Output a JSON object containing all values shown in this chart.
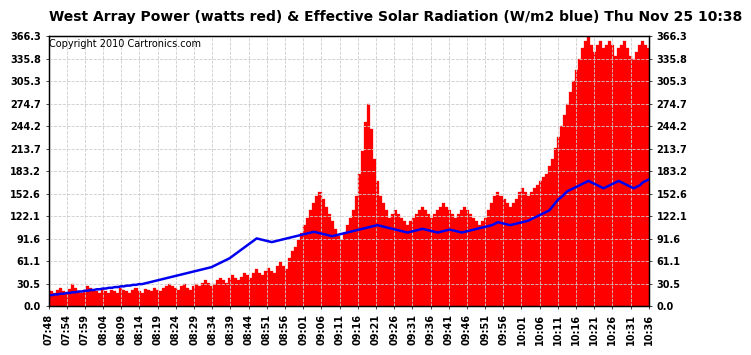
{
  "title": "West Array Power (watts red) & Effective Solar Radiation (W/m2 blue) Thu Nov 25 10:38",
  "copyright": "Copyright 2010 Cartronics.com",
  "yticks": [
    0.0,
    30.5,
    61.1,
    91.6,
    122.1,
    152.6,
    183.2,
    213.7,
    244.2,
    274.7,
    305.3,
    335.8,
    366.3
  ],
  "ymax": 366.3,
  "ymin": 0.0,
  "xtick_labels": [
    "07:48",
    "07:54",
    "07:59",
    "08:04",
    "08:09",
    "08:14",
    "08:19",
    "08:24",
    "08:29",
    "08:34",
    "08:39",
    "08:44",
    "08:51",
    "08:56",
    "09:01",
    "09:06",
    "09:11",
    "09:16",
    "09:21",
    "09:26",
    "09:31",
    "09:36",
    "09:41",
    "09:46",
    "09:51",
    "09:56",
    "10:01",
    "10:06",
    "10:11",
    "10:16",
    "10:21",
    "10:26",
    "10:31",
    "10:36"
  ],
  "bar_color": "#FF0000",
  "line_color": "#0000EE",
  "bg_color": "#FFFFFF",
  "grid_color": "#CCCCCC",
  "title_fontsize": 10,
  "tick_fontsize": 7,
  "copyright_fontsize": 7,
  "power_data": [
    22,
    20,
    18,
    22,
    25,
    20,
    18,
    23,
    30,
    25,
    20,
    18,
    22,
    28,
    25,
    22,
    20,
    18,
    24,
    20,
    18,
    22,
    20,
    18,
    25,
    22,
    20,
    18,
    22,
    25,
    20,
    18,
    23,
    22,
    20,
    25,
    22,
    20,
    25,
    28,
    30,
    28,
    25,
    22,
    28,
    30,
    25,
    22,
    28,
    30,
    28,
    32,
    35,
    32,
    28,
    30,
    35,
    38,
    35,
    32,
    38,
    42,
    38,
    35,
    40,
    45,
    42,
    38,
    45,
    50,
    45,
    42,
    48,
    52,
    48,
    45,
    55,
    60,
    55,
    50,
    65,
    75,
    80,
    90,
    100,
    110,
    120,
    130,
    140,
    150,
    155,
    145,
    135,
    125,
    115,
    105,
    95,
    90,
    100,
    110,
    120,
    130,
    150,
    180,
    210,
    250,
    275,
    240,
    200,
    170,
    150,
    140,
    130,
    120,
    125,
    130,
    125,
    120,
    115,
    110,
    115,
    120,
    125,
    130,
    135,
    130,
    125,
    120,
    125,
    130,
    135,
    140,
    135,
    130,
    125,
    120,
    125,
    130,
    135,
    130,
    125,
    120,
    115,
    110,
    115,
    120,
    130,
    140,
    150,
    155,
    150,
    145,
    140,
    135,
    140,
    145,
    155,
    160,
    155,
    150,
    155,
    160,
    165,
    170,
    175,
    180,
    190,
    200,
    215,
    230,
    245,
    260,
    275,
    290,
    305,
    320,
    335,
    350,
    360,
    366,
    355,
    345,
    355,
    360,
    350,
    355,
    360,
    355,
    340,
    350,
    355,
    360,
    350,
    340,
    335,
    345,
    355,
    360,
    355,
    350
  ],
  "solar_data": [
    15,
    15,
    16,
    16,
    17,
    17,
    18,
    18,
    19,
    19,
    20,
    20,
    21,
    21,
    22,
    22,
    23,
    23,
    24,
    24,
    25,
    25,
    26,
    26,
    27,
    27,
    28,
    28,
    29,
    29,
    30,
    30,
    31,
    32,
    33,
    34,
    35,
    36,
    37,
    38,
    39,
    40,
    41,
    42,
    43,
    44,
    45,
    46,
    47,
    48,
    49,
    50,
    51,
    52,
    53,
    55,
    57,
    59,
    61,
    63,
    65,
    68,
    71,
    74,
    77,
    80,
    83,
    86,
    89,
    92,
    91,
    90,
    89,
    88,
    87,
    88,
    89,
    90,
    91,
    92,
    93,
    94,
    95,
    96,
    97,
    98,
    99,
    100,
    101,
    100,
    99,
    98,
    97,
    96,
    95,
    96,
    97,
    98,
    99,
    100,
    101,
    102,
    103,
    104,
    105,
    106,
    107,
    108,
    109,
    110,
    109,
    108,
    107,
    106,
    105,
    104,
    103,
    102,
    101,
    100,
    101,
    102,
    103,
    104,
    105,
    104,
    103,
    102,
    101,
    100,
    101,
    102,
    103,
    104,
    103,
    102,
    101,
    100,
    101,
    102,
    103,
    104,
    105,
    106,
    107,
    108,
    109,
    110,
    112,
    114,
    113,
    112,
    111,
    110,
    111,
    112,
    113,
    114,
    115,
    116,
    118,
    120,
    122,
    124,
    126,
    128,
    130,
    135,
    140,
    145,
    148,
    152,
    156,
    158,
    160,
    162,
    164,
    166,
    168,
    170,
    168,
    166,
    164,
    162,
    160,
    162,
    164,
    166,
    168,
    170,
    168,
    166,
    164,
    162,
    160,
    162,
    164,
    168,
    170,
    172
  ]
}
